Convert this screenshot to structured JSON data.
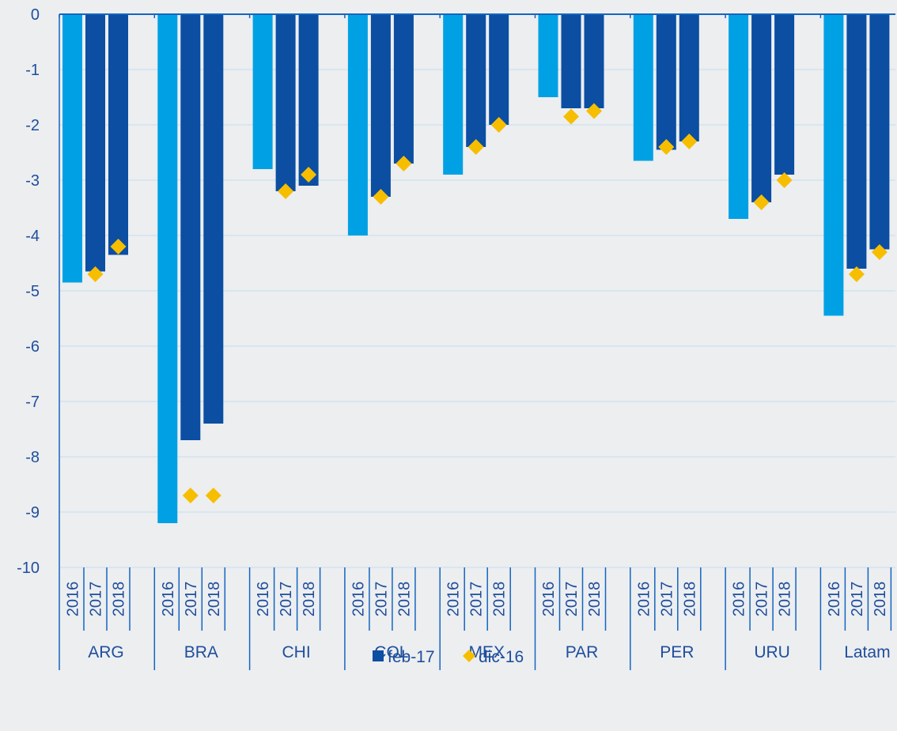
{
  "chart_data": {
    "type": "bar",
    "categories": [
      "ARG",
      "BRA",
      "CHI",
      "COL",
      "MEX",
      "PAR",
      "PER",
      "URU",
      "Latam"
    ],
    "years": [
      "2016",
      "2017",
      "2018"
    ],
    "ylim": [
      -10,
      0
    ],
    "y_ticks": [
      "0",
      "-1",
      "-2",
      "-3",
      "-4",
      "-5",
      "-6",
      "-7",
      "-8",
      "-9",
      "-10"
    ],
    "grid": true,
    "title": "",
    "xlabel": "",
    "ylabel": "",
    "series": [
      {
        "name": "feb-17",
        "marker": "bar",
        "values": [
          [
            -4.85,
            -4.65,
            -4.35
          ],
          [
            -9.2,
            -7.7,
            -7.4
          ],
          [
            -2.8,
            -3.2,
            -3.1
          ],
          [
            -4.0,
            -3.3,
            -2.7
          ],
          [
            -2.9,
            -2.4,
            -2.0
          ],
          [
            -1.5,
            -1.7,
            -1.7
          ],
          [
            -2.65,
            -2.45,
            -2.3
          ],
          [
            -3.7,
            -3.4,
            -2.9
          ],
          [
            -5.45,
            -4.6,
            -4.25
          ]
        ]
      },
      {
        "name": "dic-16",
        "marker": "diamond",
        "values": [
          [
            null,
            -4.7,
            -4.2
          ],
          [
            null,
            -8.7,
            -8.7
          ],
          [
            null,
            -3.2,
            -2.9
          ],
          [
            null,
            -3.3,
            -2.7
          ],
          [
            null,
            -2.4,
            -2.0
          ],
          [
            null,
            -1.85,
            -1.75
          ],
          [
            null,
            -2.4,
            -2.3
          ],
          [
            null,
            -3.4,
            -3.0
          ],
          [
            null,
            -4.7,
            -4.3
          ]
        ]
      }
    ],
    "colors": {
      "bar_2016": "#00a1e4",
      "bar_forecast": "#0b4ea2",
      "diamond": "#f7be00",
      "axis": "#1565c0",
      "grid": "#c5dff0",
      "text": "#1f4e9c"
    },
    "legend": {
      "position": "bottom-center"
    }
  }
}
